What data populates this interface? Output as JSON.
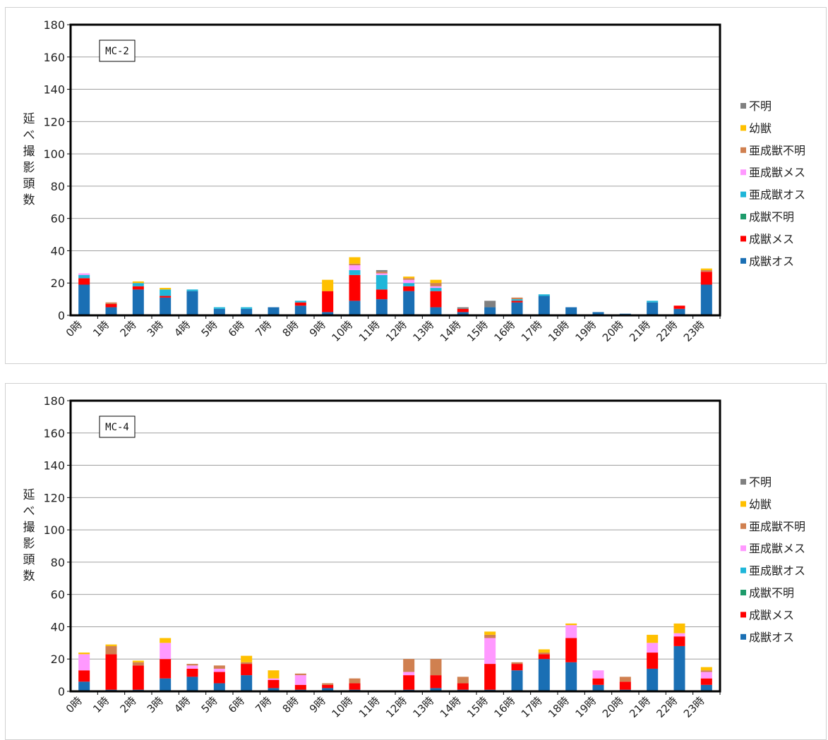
{
  "chart_data": [
    {
      "type": "bar",
      "stacked": true,
      "label": "MC-2",
      "ylabel": "延べ撮影頭数",
      "ylim": [
        0,
        180
      ],
      "yticks": [
        0,
        20,
        40,
        60,
        80,
        100,
        120,
        140,
        160,
        180
      ],
      "grid": true,
      "legend_position": "right",
      "categories": [
        "0時",
        "1時",
        "2時",
        "3時",
        "4時",
        "5時",
        "6時",
        "7時",
        "8時",
        "9時",
        "10時",
        "11時",
        "12時",
        "13時",
        "14時",
        "15時",
        "16時",
        "17時",
        "18時",
        "19時",
        "20時",
        "21時",
        "22時",
        "23時"
      ],
      "series": [
        {
          "name": "成獣オス",
          "color": "#1a6fb4",
          "values": [
            19,
            5,
            16,
            11,
            15,
            4,
            4,
            5,
            6,
            2,
            9,
            10,
            15,
            5,
            2,
            5,
            8,
            12,
            5,
            2,
            1,
            8,
            4,
            19
          ]
        },
        {
          "name": "成獣メス",
          "color": "#ff0000",
          "values": [
            4,
            2,
            2,
            1,
            0,
            0,
            0,
            0,
            2,
            13,
            16,
            6,
            3,
            10,
            2,
            0,
            1,
            0,
            0,
            0,
            0,
            0,
            2,
            8
          ]
        },
        {
          "name": "成獣不明",
          "color": "#1e9b6b",
          "values": [
            0,
            0,
            0,
            0,
            0,
            0,
            0,
            0,
            0,
            0,
            0,
            0,
            0,
            0,
            0,
            0,
            0,
            0,
            0,
            0,
            0,
            0,
            0,
            0
          ]
        },
        {
          "name": "亜成獣オス",
          "color": "#1fb6d9",
          "values": [
            2,
            0,
            2,
            4,
            1,
            1,
            1,
            0,
            1,
            0,
            3,
            9,
            2,
            2,
            0,
            0,
            1,
            1,
            0,
            0,
            0,
            1,
            0,
            0
          ]
        },
        {
          "name": "亜成獣メス",
          "color": "#ff99ff",
          "values": [
            1,
            0,
            0,
            0,
            0,
            0,
            0,
            0,
            0,
            0,
            3,
            1,
            2,
            1,
            0,
            0,
            0,
            0,
            0,
            0,
            0,
            0,
            0,
            0
          ]
        },
        {
          "name": "亜成獣不明",
          "color": "#d08050",
          "values": [
            0,
            1,
            0,
            0,
            0,
            0,
            0,
            0,
            0,
            0,
            1,
            1,
            1,
            2,
            0,
            0,
            1,
            0,
            0,
            0,
            0,
            0,
            0,
            1
          ]
        },
        {
          "name": "幼獣",
          "color": "#ffc000",
          "values": [
            0,
            0,
            1,
            1,
            0,
            0,
            0,
            0,
            0,
            7,
            4,
            0,
            1,
            2,
            0,
            0,
            0,
            0,
            0,
            0,
            0,
            0,
            0,
            1
          ]
        },
        {
          "name": "不明",
          "color": "#808080",
          "values": [
            0,
            0,
            0,
            0,
            0,
            0,
            0,
            0,
            0,
            0,
            0,
            1,
            0,
            0,
            1,
            4,
            0,
            0,
            0,
            0,
            0,
            0,
            0,
            0
          ]
        }
      ]
    },
    {
      "type": "bar",
      "stacked": true,
      "label": "MC-4",
      "ylabel": "延べ撮影頭数",
      "ylim": [
        0,
        180
      ],
      "yticks": [
        0,
        20,
        40,
        60,
        80,
        100,
        120,
        140,
        160,
        180
      ],
      "grid": true,
      "legend_position": "right",
      "categories": [
        "0時",
        "1時",
        "2時",
        "3時",
        "4時",
        "5時",
        "6時",
        "7時",
        "8時",
        "9時",
        "10時",
        "11時",
        "12時",
        "13時",
        "14時",
        "15時",
        "16時",
        "17時",
        "18時",
        "19時",
        "20時",
        "21時",
        "22時",
        "23時"
      ],
      "series": [
        {
          "name": "成獣オス",
          "color": "#1a6fb4",
          "values": [
            6,
            1,
            1,
            8,
            9,
            5,
            10,
            2,
            1,
            2,
            1,
            0,
            1,
            2,
            1,
            1,
            13,
            20,
            18,
            4,
            1,
            14,
            28,
            4
          ]
        },
        {
          "name": "成獣メス",
          "color": "#ff0000",
          "values": [
            7,
            22,
            15,
            12,
            5,
            7,
            7,
            5,
            3,
            2,
            4,
            0,
            9,
            8,
            4,
            16,
            4,
            3,
            15,
            4,
            5,
            10,
            6,
            4
          ]
        },
        {
          "name": "成獣不明",
          "color": "#1e9b6b",
          "values": [
            0,
            0,
            0,
            0,
            0,
            0,
            0,
            0,
            0,
            0,
            0,
            0,
            0,
            0,
            0,
            0,
            0,
            0,
            0,
            0,
            0,
            0,
            0,
            0
          ]
        },
        {
          "name": "亜成獣オス",
          "color": "#1fb6d9",
          "values": [
            0,
            0,
            0,
            0,
            0,
            0,
            0,
            0,
            0,
            0,
            0,
            0,
            0,
            0,
            0,
            0,
            0,
            0,
            0,
            0,
            0,
            0,
            0,
            0
          ]
        },
        {
          "name": "亜成獣メス",
          "color": "#ff99ff",
          "values": [
            10,
            0,
            0,
            10,
            2,
            2,
            0,
            1,
            6,
            0,
            0,
            0,
            2,
            0,
            0,
            16,
            0,
            0,
            8,
            5,
            0,
            6,
            2,
            4
          ]
        },
        {
          "name": "亜成獣不明",
          "color": "#d08050",
          "values": [
            0,
            5,
            2,
            0,
            1,
            2,
            1,
            0,
            1,
            1,
            3,
            0,
            8,
            10,
            4,
            2,
            1,
            1,
            0,
            0,
            3,
            0,
            0,
            1
          ]
        },
        {
          "name": "幼獣",
          "color": "#ffc000",
          "values": [
            1,
            1,
            1,
            3,
            0,
            0,
            4,
            5,
            0,
            0,
            0,
            0,
            0,
            0,
            0,
            2,
            0,
            2,
            1,
            0,
            0,
            5,
            6,
            2
          ]
        },
        {
          "name": "不明",
          "color": "#808080",
          "values": [
            0,
            0,
            0,
            0,
            0,
            0,
            0,
            0,
            0,
            0,
            0,
            0,
            0,
            0,
            0,
            0,
            0,
            0,
            0,
            0,
            0,
            0,
            0,
            0
          ]
        }
      ]
    }
  ]
}
